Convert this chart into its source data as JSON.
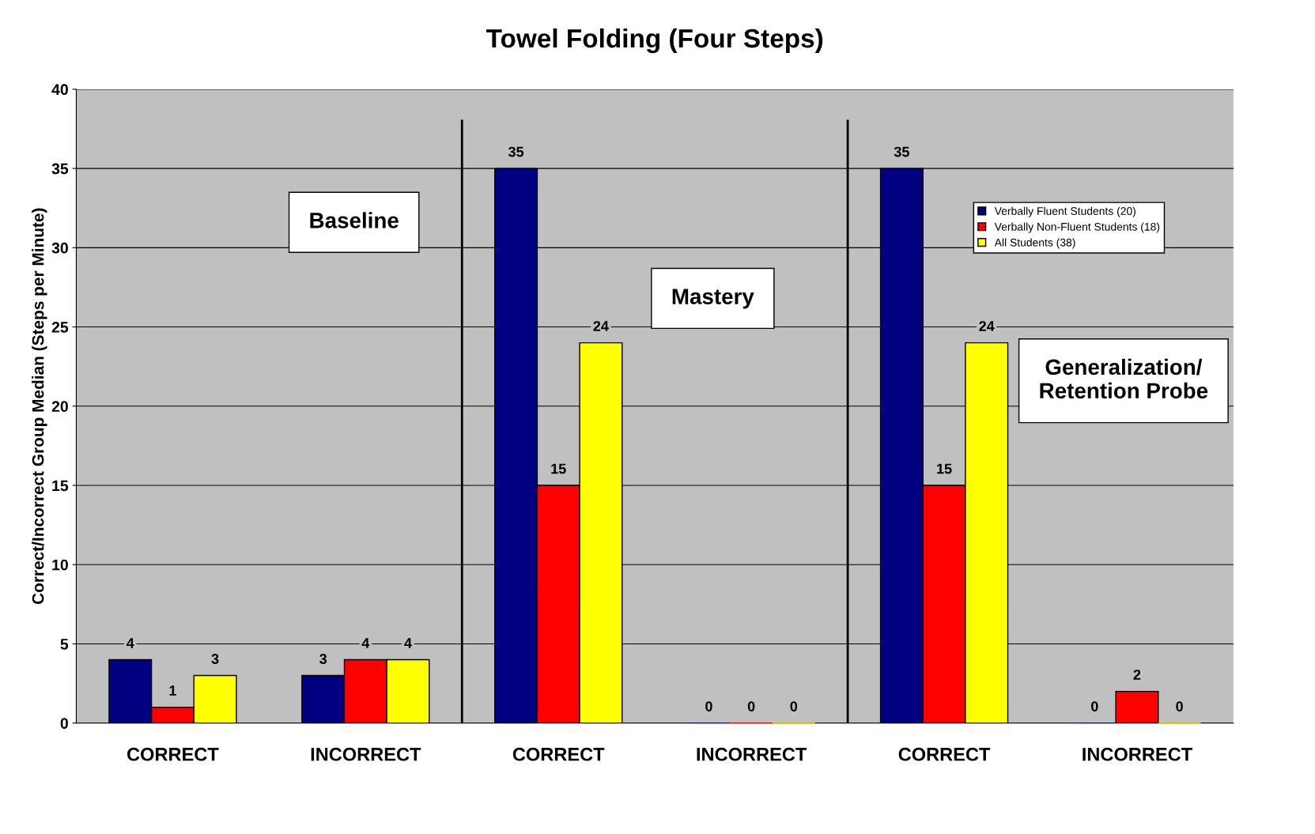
{
  "chart_data": {
    "type": "bar",
    "title": "Towel Folding (Four Steps)",
    "ylabel": "Correct/Incorrect Group Median (Steps per Minute)",
    "categories": [
      "CORRECT",
      "INCORRECT",
      "CORRECT",
      "INCORRECT",
      "CORRECT",
      "INCORRECT"
    ],
    "series": [
      {
        "name": "Verbally Fluent Students (20)",
        "color": "#000080",
        "values": [
          4,
          3,
          35,
          0,
          35,
          0
        ]
      },
      {
        "name": "Verbally Non-Fluent Students (18)",
        "color": "#ff0000",
        "values": [
          1,
          4,
          15,
          0,
          15,
          2
        ]
      },
      {
        "name": "All Students (38)",
        "color": "#ffff00",
        "values": [
          3,
          4,
          24,
          0,
          24,
          0
        ]
      }
    ],
    "ylim": [
      0,
      40
    ],
    "yticks": [
      0,
      5,
      10,
      15,
      20,
      25,
      30,
      35,
      40
    ],
    "grid": "y",
    "legend": "top right",
    "data_labels": true,
    "annotations": [
      "Baseline",
      "Mastery",
      "Generalization/\nRetention Probe"
    ]
  }
}
